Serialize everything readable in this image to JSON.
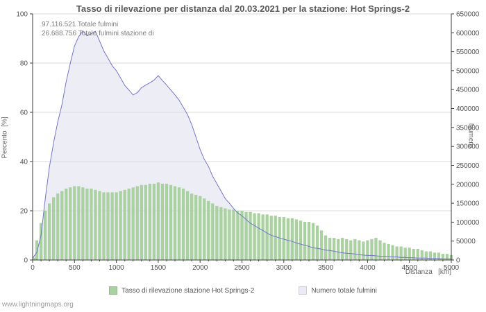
{
  "chart_data": {
    "type": "combo",
    "title": "Tasso di rilevazione per distanza dal 20.03.2021 per la stazione: Hot Springs-2",
    "x_label": "Distanza   [km]",
    "y_left_label": "Percento  [%]",
    "y_right_label": "Numero",
    "x_range": [
      0,
      5000
    ],
    "y_left_range": [
      0,
      100
    ],
    "y_right_range": [
      0,
      650000
    ],
    "x_step": 50,
    "x_ticks": [
      0,
      500,
      1000,
      1500,
      2000,
      2500,
      3000,
      3500,
      4000,
      4500,
      5000
    ],
    "y_left_ticks": [
      0,
      20,
      40,
      60,
      80,
      100
    ],
    "y_right_ticks": [
      0,
      50000,
      100000,
      150000,
      200000,
      250000,
      300000,
      350000,
      400000,
      450000,
      500000,
      550000,
      600000,
      650000
    ],
    "grid": true,
    "legend_position": "bottom",
    "colors": {
      "grid": "#d9d9d9",
      "axis": "#3d3d3d",
      "tick_text": "#4f4f4f"
    },
    "annotations": [
      "97.116.521 Totale fulmini",
      "26.688.756 Totale fulmini stazione di"
    ],
    "series": [
      {
        "name": "Tasso di rilevazione stazione Hot Springs-2",
        "type": "bar",
        "axis": "left",
        "unit": "%",
        "color": "#aad2a0",
        "values": [
          1,
          8,
          15,
          20,
          23,
          25.5,
          27,
          28,
          29,
          29.5,
          30,
          30,
          29.5,
          29,
          29,
          28.5,
          28,
          27.5,
          27.5,
          27.5,
          27.5,
          28,
          28.5,
          29,
          29.5,
          30,
          30.5,
          30.5,
          31,
          31,
          31.5,
          31,
          31,
          30.5,
          30,
          29.5,
          29,
          28,
          27,
          26.5,
          26,
          25,
          24,
          23,
          22,
          21.5,
          21,
          20.5,
          20.5,
          20,
          20,
          19.5,
          19.5,
          19,
          19,
          18.5,
          18.5,
          18,
          18,
          17.5,
          17.5,
          17,
          17,
          16.5,
          16,
          15.5,
          15.5,
          15,
          14,
          12,
          10,
          9,
          9,
          8.5,
          9,
          8.5,
          8,
          8.5,
          8,
          7.5,
          8,
          8.5,
          9,
          8,
          7,
          6.5,
          6,
          5.5,
          5.5,
          5,
          5,
          4.5,
          4.5,
          4,
          3.5,
          3.5,
          3,
          3,
          2.5,
          2.5,
          2
        ]
      },
      {
        "name": "Numero totale fulmini",
        "type": "area",
        "axis": "right",
        "unit": "count",
        "color": "#dedeef",
        "legend_color": "#ebebf8",
        "line_color": "#7474c8",
        "values": [
          5000,
          20000,
          65000,
          160000,
          245000,
          310000,
          365000,
          410000,
          470000,
          520000,
          565000,
          590000,
          605000,
          592000,
          598000,
          604000,
          578000,
          552000,
          533000,
          513000,
          500000,
          481000,
          461000,
          449000,
          436000,
          442000,
          455000,
          462000,
          468000,
          475000,
          487000,
          474000,
          462000,
          449000,
          436000,
          422000,
          403000,
          384000,
          358000,
          325000,
          292000,
          266000,
          247000,
          221000,
          202000,
          182000,
          162000,
          150000,
          136000,
          124000,
          117000,
          107000,
          97000,
          91000,
          84000,
          78000,
          71000,
          65000,
          62000,
          58000,
          55000,
          52000,
          49000,
          45000,
          42000,
          39000,
          36000,
          32000,
          31000,
          29000,
          26000,
          25000,
          23000,
          21000,
          19000,
          18000,
          17000,
          16000,
          14000,
          13000,
          12000,
          12000,
          11000,
          10000,
          10000,
          9000,
          8000,
          8000,
          7000,
          7000,
          6000,
          6000,
          5000,
          5000,
          5000,
          4000,
          4000,
          4000,
          3000,
          3000,
          3000
        ]
      }
    ]
  },
  "legend": {
    "items": [
      {
        "label": "Tasso di rilevazione stazione Hot Springs-2"
      },
      {
        "label": "Numero totale fulmini"
      }
    ]
  },
  "footer": {
    "link_text": "www.lightningmaps.org"
  }
}
